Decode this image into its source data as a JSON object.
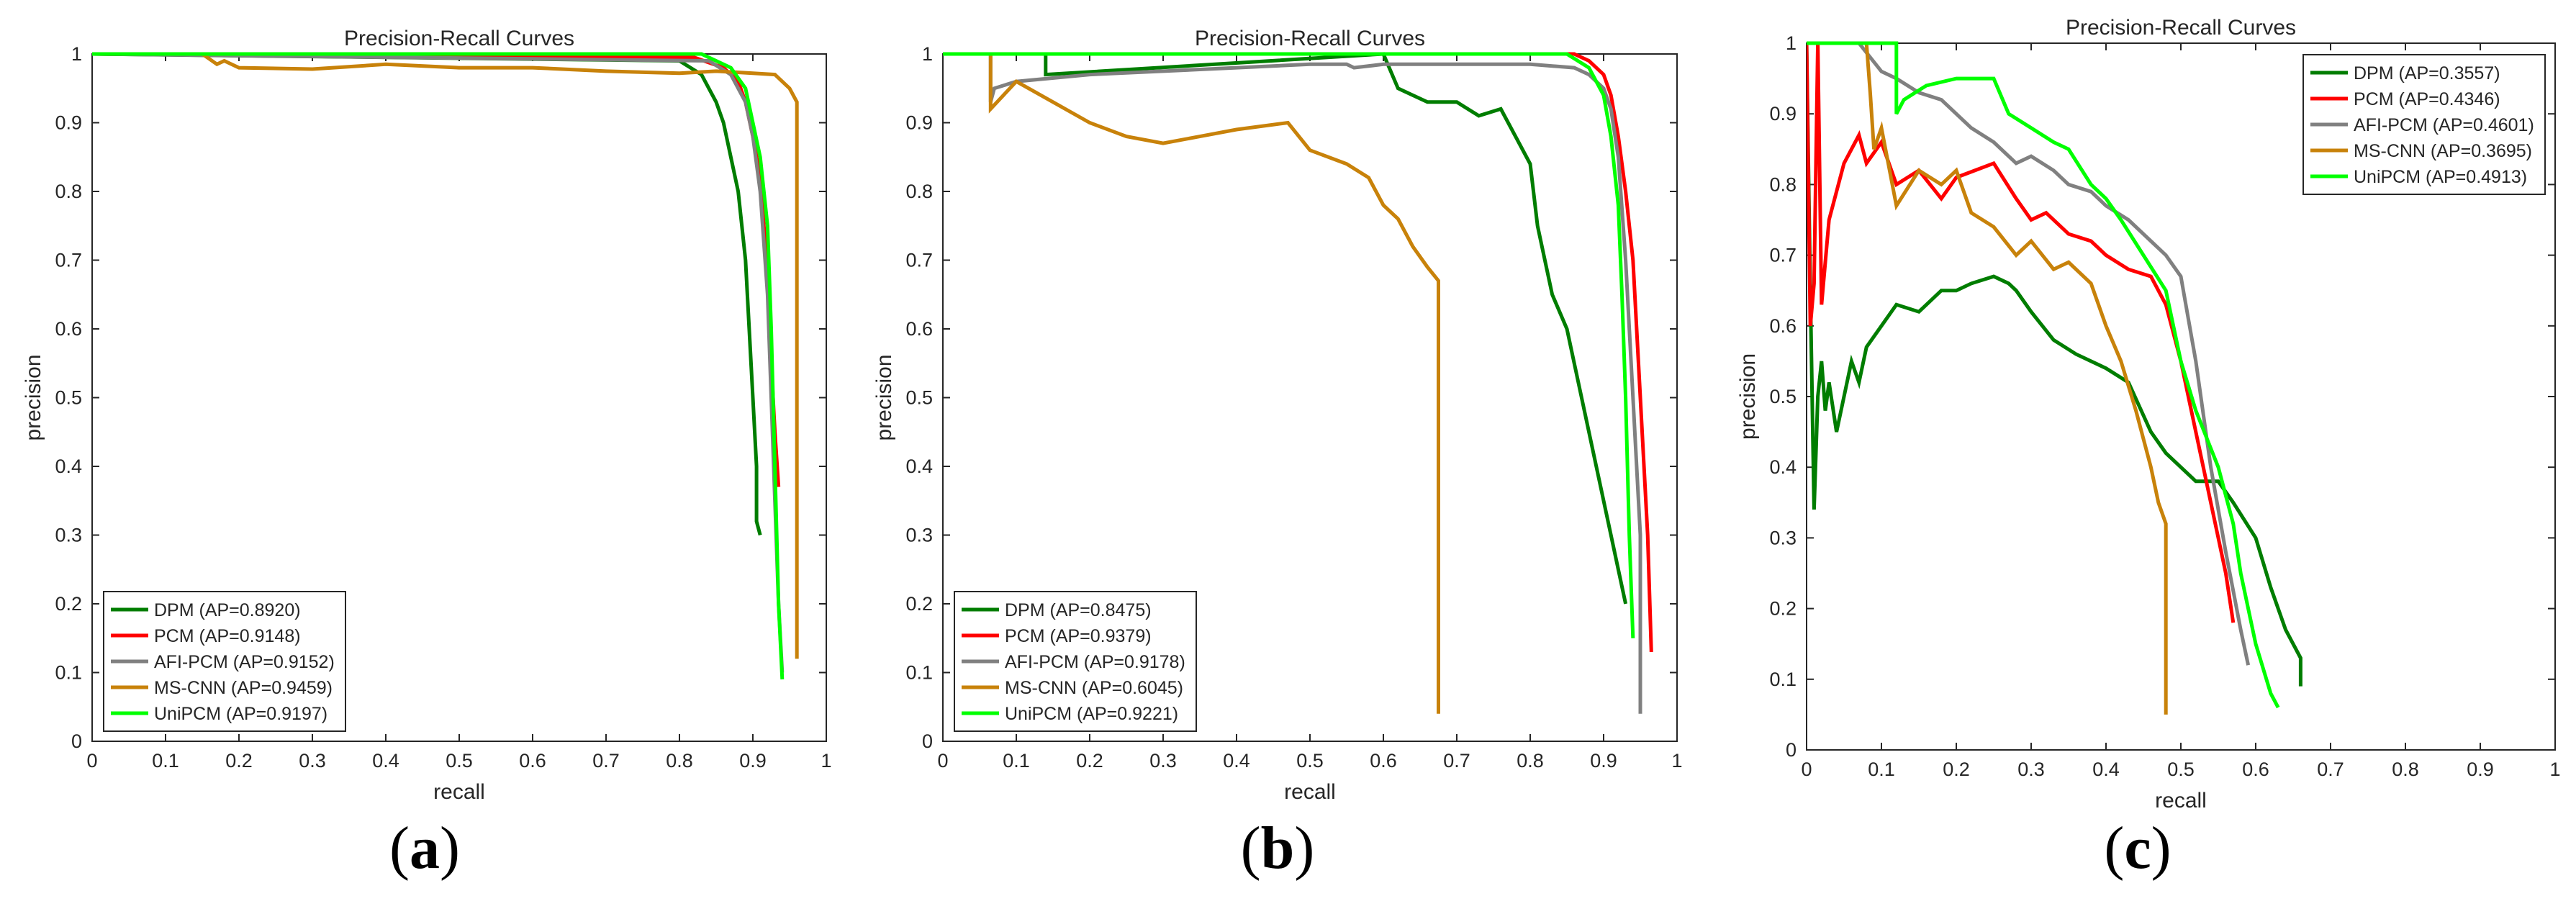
{
  "figure_labels": [
    {
      "open": "(",
      "letter": "a",
      "close": ")"
    },
    {
      "open": "(",
      "letter": "b",
      "close": ")"
    },
    {
      "open": "(",
      "letter": "c",
      "close": ")"
    }
  ],
  "series_colors": {
    "DPM": "#007d00",
    "PCM": "#ff0000",
    "AFI-PCM": "#808080",
    "MS-CNN": "#c8820a",
    "UniPCM": "#00ff00"
  },
  "chart_data": [
    {
      "type": "line",
      "panel": "a",
      "title": "Precision-Recall Curves",
      "xlabel": "recall",
      "ylabel": "precision",
      "xlim": [
        0,
        1
      ],
      "ylim": [
        0,
        1
      ],
      "xticks": [
        "0",
        "0.1",
        "0.2",
        "0.3",
        "0.4",
        "0.5",
        "0.6",
        "0.7",
        "0.8",
        "0.9",
        "1"
      ],
      "yticks": [
        "0",
        "0.1",
        "0.2",
        "0.3",
        "0.4",
        "0.5",
        "0.6",
        "0.7",
        "0.8",
        "0.9",
        "1"
      ],
      "legend_position": "bottom-left",
      "series": [
        {
          "name": "DPM",
          "label": "DPM (AP=0.8920)",
          "x": [
            0,
            0.8,
            0.83,
            0.85,
            0.86,
            0.87,
            0.88,
            0.89,
            0.895,
            0.9,
            0.905,
            0.905,
            0.91
          ],
          "y": [
            1,
            0.99,
            0.97,
            0.93,
            0.9,
            0.85,
            0.8,
            0.7,
            0.6,
            0.5,
            0.4,
            0.32,
            0.3
          ]
        },
        {
          "name": "PCM",
          "label": "PCM (AP=0.9148)",
          "x": [
            0,
            0.82,
            0.86,
            0.88,
            0.89,
            0.9,
            0.91,
            0.915,
            0.92,
            0.925,
            0.93,
            0.935
          ],
          "y": [
            1,
            0.995,
            0.98,
            0.96,
            0.93,
            0.88,
            0.82,
            0.75,
            0.68,
            0.55,
            0.45,
            0.37
          ]
        },
        {
          "name": "AFI-PCM",
          "label": "AFI-PCM (AP=0.9152)",
          "x": [
            0,
            0.84,
            0.87,
            0.89,
            0.9,
            0.91,
            0.92,
            0.925,
            0.93,
            0.935,
            0.94
          ],
          "y": [
            1,
            0.99,
            0.97,
            0.93,
            0.88,
            0.8,
            0.65,
            0.5,
            0.35,
            0.2,
            0.1
          ]
        },
        {
          "name": "MS-CNN",
          "label": "MS-CNN (AP=0.9459)",
          "x": [
            0,
            0.15,
            0.17,
            0.18,
            0.2,
            0.3,
            0.4,
            0.5,
            0.6,
            0.7,
            0.8,
            0.85,
            0.9,
            0.93,
            0.95,
            0.96,
            0.96
          ],
          "y": [
            1,
            1,
            0.985,
            0.99,
            0.98,
            0.978,
            0.985,
            0.98,
            0.98,
            0.975,
            0.972,
            0.975,
            0.972,
            0.97,
            0.95,
            0.93,
            0.12
          ]
        },
        {
          "name": "UniPCM",
          "label": "UniPCM (AP=0.9197)",
          "x": [
            0,
            0.83,
            0.87,
            0.89,
            0.9,
            0.91,
            0.92,
            0.925,
            0.93,
            0.935,
            0.94
          ],
          "y": [
            1,
            1.0,
            0.98,
            0.95,
            0.9,
            0.85,
            0.75,
            0.6,
            0.4,
            0.2,
            0.09
          ]
        }
      ]
    },
    {
      "type": "line",
      "panel": "b",
      "title": "Precision-Recall Curves",
      "xlabel": "recall",
      "ylabel": "precision",
      "xlim": [
        0,
        1
      ],
      "ylim": [
        0,
        1
      ],
      "xticks": [
        "0",
        "0.1",
        "0.2",
        "0.3",
        "0.4",
        "0.5",
        "0.6",
        "0.7",
        "0.8",
        "0.9",
        "1"
      ],
      "yticks": [
        "0",
        "0.1",
        "0.2",
        "0.3",
        "0.4",
        "0.5",
        "0.6",
        "0.7",
        "0.8",
        "0.9",
        "1"
      ],
      "legend_position": "bottom-left",
      "series": [
        {
          "name": "DPM",
          "label": "DPM (AP=0.8475)",
          "x": [
            0,
            0.14,
            0.14,
            0.6,
            0.62,
            0.66,
            0.7,
            0.73,
            0.76,
            0.78,
            0.8,
            0.81,
            0.83,
            0.85,
            0.87,
            0.89,
            0.91,
            0.92,
            0.93
          ],
          "y": [
            1,
            1,
            0.97,
            1,
            0.95,
            0.93,
            0.93,
            0.91,
            0.92,
            0.88,
            0.84,
            0.75,
            0.65,
            0.6,
            0.5,
            0.4,
            0.3,
            0.25,
            0.2
          ]
        },
        {
          "name": "PCM",
          "label": "PCM (AP=0.9379)",
          "x": [
            0,
            0.86,
            0.88,
            0.9,
            0.91,
            0.92,
            0.93,
            0.94,
            0.95,
            0.96,
            0.965
          ],
          "y": [
            1,
            1,
            0.99,
            0.97,
            0.94,
            0.88,
            0.8,
            0.7,
            0.5,
            0.3,
            0.13
          ]
        },
        {
          "name": "AFI-PCM",
          "label": "AFI-PCM (AP=0.9178)",
          "x": [
            0,
            0.065,
            0.065,
            0.07,
            0.1,
            0.2,
            0.3,
            0.4,
            0.5,
            0.55,
            0.56,
            0.6,
            0.7,
            0.8,
            0.86,
            0.88,
            0.9,
            0.91,
            0.92,
            0.93,
            0.94,
            0.95,
            0.95
          ],
          "y": [
            1,
            1,
            0.93,
            0.95,
            0.96,
            0.97,
            0.975,
            0.98,
            0.985,
            0.985,
            0.98,
            0.985,
            0.985,
            0.985,
            0.98,
            0.97,
            0.95,
            0.92,
            0.85,
            0.7,
            0.5,
            0.3,
            0.04
          ]
        },
        {
          "name": "MS-CNN",
          "label": "MS-CNN (AP=0.6045)",
          "x": [
            0,
            0.065,
            0.065,
            0.1,
            0.15,
            0.2,
            0.25,
            0.3,
            0.35,
            0.4,
            0.47,
            0.5,
            0.55,
            0.58,
            0.6,
            0.62,
            0.64,
            0.66,
            0.675,
            0.675
          ],
          "y": [
            1,
            1,
            0.92,
            0.96,
            0.93,
            0.9,
            0.88,
            0.87,
            0.88,
            0.89,
            0.9,
            0.86,
            0.84,
            0.82,
            0.78,
            0.76,
            0.72,
            0.69,
            0.67,
            0.04
          ]
        },
        {
          "name": "UniPCM",
          "label": "UniPCM (AP=0.9221)",
          "x": [
            0,
            0.85,
            0.88,
            0.9,
            0.91,
            0.92,
            0.925,
            0.93,
            0.935,
            0.94
          ],
          "y": [
            1,
            1,
            0.98,
            0.94,
            0.88,
            0.78,
            0.65,
            0.5,
            0.3,
            0.15
          ]
        }
      ]
    },
    {
      "type": "line",
      "panel": "c",
      "title": "Precision-Recall Curves",
      "xlabel": "recall",
      "ylabel": "precision",
      "xlim": [
        0,
        1
      ],
      "ylim": [
        0,
        1
      ],
      "xticks": [
        "0",
        "0.1",
        "0.2",
        "0.3",
        "0.4",
        "0.5",
        "0.6",
        "0.7",
        "0.8",
        "0.9",
        "1"
      ],
      "yticks": [
        "0",
        "0.1",
        "0.2",
        "0.3",
        "0.4",
        "0.5",
        "0.6",
        "0.7",
        "0.8",
        "0.9",
        "1"
      ],
      "legend_position": "top-right",
      "series": [
        {
          "name": "DPM",
          "label": "DPM (AP=0.3557)",
          "x": [
            0,
            0.005,
            0.01,
            0.015,
            0.02,
            0.025,
            0.03,
            0.04,
            0.05,
            0.06,
            0.07,
            0.08,
            0.1,
            0.12,
            0.15,
            0.18,
            0.2,
            0.22,
            0.25,
            0.27,
            0.28,
            0.3,
            0.33,
            0.36,
            0.4,
            0.43,
            0.46,
            0.48,
            0.5,
            0.52,
            0.55,
            0.57,
            0.6,
            0.62,
            0.64,
            0.66,
            0.66
          ],
          "y": [
            1,
            0.65,
            0.34,
            0.5,
            0.55,
            0.48,
            0.52,
            0.45,
            0.5,
            0.55,
            0.52,
            0.57,
            0.6,
            0.63,
            0.62,
            0.65,
            0.65,
            0.66,
            0.67,
            0.66,
            0.65,
            0.62,
            0.58,
            0.56,
            0.54,
            0.52,
            0.45,
            0.42,
            0.4,
            0.38,
            0.38,
            0.35,
            0.3,
            0.23,
            0.17,
            0.13,
            0.09
          ]
        },
        {
          "name": "PCM",
          "label": "PCM (AP=0.4346)",
          "x": [
            0,
            0.005,
            0.01,
            0.015,
            0.02,
            0.03,
            0.05,
            0.07,
            0.08,
            0.1,
            0.12,
            0.15,
            0.18,
            0.2,
            0.25,
            0.28,
            0.3,
            0.32,
            0.35,
            0.38,
            0.4,
            0.43,
            0.46,
            0.48,
            0.5,
            0.52,
            0.54,
            0.55,
            0.56,
            0.57
          ],
          "y": [
            1,
            0.6,
            0.66,
            1.0,
            0.63,
            0.75,
            0.83,
            0.87,
            0.83,
            0.86,
            0.8,
            0.82,
            0.78,
            0.81,
            0.83,
            0.78,
            0.75,
            0.76,
            0.73,
            0.72,
            0.7,
            0.68,
            0.67,
            0.63,
            0.55,
            0.45,
            0.35,
            0.3,
            0.25,
            0.18
          ]
        },
        {
          "name": "AFI-PCM",
          "label": "AFI-PCM (AP=0.4601)",
          "x": [
            0,
            0.005,
            0.03,
            0.07,
            0.1,
            0.12,
            0.15,
            0.18,
            0.2,
            0.22,
            0.25,
            0.28,
            0.3,
            0.33,
            0.35,
            0.38,
            0.4,
            0.43,
            0.46,
            0.48,
            0.5,
            0.52,
            0.54,
            0.56,
            0.58,
            0.59
          ],
          "y": [
            1,
            1,
            1,
            1,
            0.96,
            0.95,
            0.93,
            0.92,
            0.9,
            0.88,
            0.86,
            0.83,
            0.84,
            0.82,
            0.8,
            0.79,
            0.77,
            0.75,
            0.72,
            0.7,
            0.67,
            0.55,
            0.4,
            0.28,
            0.17,
            0.12
          ]
        },
        {
          "name": "MS-CNN",
          "label": "MS-CNN (AP=0.3695)",
          "x": [
            0,
            0.06,
            0.08,
            0.085,
            0.09,
            0.1,
            0.12,
            0.15,
            0.18,
            0.2,
            0.22,
            0.25,
            0.28,
            0.3,
            0.33,
            0.35,
            0.38,
            0.4,
            0.42,
            0.44,
            0.46,
            0.47,
            0.48,
            0.48
          ],
          "y": [
            1,
            1,
            1,
            0.93,
            0.85,
            0.88,
            0.77,
            0.82,
            0.8,
            0.82,
            0.76,
            0.74,
            0.7,
            0.72,
            0.68,
            0.69,
            0.66,
            0.6,
            0.55,
            0.48,
            0.4,
            0.35,
            0.32,
            0.05
          ]
        },
        {
          "name": "UniPCM",
          "label": "UniPCM (AP=0.4913)",
          "x": [
            0,
            0.12,
            0.12,
            0.13,
            0.16,
            0.2,
            0.25,
            0.27,
            0.3,
            0.33,
            0.35,
            0.38,
            0.4,
            0.42,
            0.45,
            0.48,
            0.5,
            0.52,
            0.55,
            0.57,
            0.58,
            0.6,
            0.62,
            0.63
          ],
          "y": [
            1,
            1,
            0.9,
            0.92,
            0.94,
            0.95,
            0.95,
            0.9,
            0.88,
            0.86,
            0.85,
            0.8,
            0.78,
            0.75,
            0.7,
            0.65,
            0.55,
            0.48,
            0.4,
            0.32,
            0.25,
            0.15,
            0.08,
            0.06
          ]
        }
      ]
    }
  ]
}
